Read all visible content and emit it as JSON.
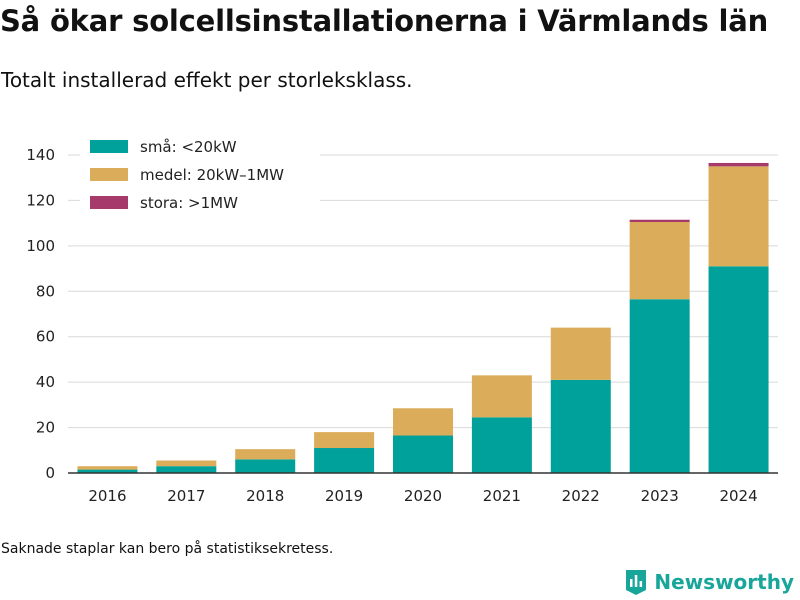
{
  "title": "Så ökar solcellsinstallationerna i Värmlands län",
  "subtitle": "Totalt installerad effekt per storleksklass.",
  "footnote": "Saknade staplar kan bero på statistiksekretess.",
  "brand": {
    "name": "Newsworthy",
    "icon": "newsworthy-logo-icon"
  },
  "colors": {
    "small": "#00a19a",
    "medium": "#dbad5a",
    "large": "#a63b6b",
    "grid": "#d9d9d9",
    "axis": "#333333"
  },
  "chart_data": {
    "type": "bar",
    "stacked": true,
    "categories": [
      "2016",
      "2017",
      "2018",
      "2019",
      "2020",
      "2021",
      "2022",
      "2023",
      "2024"
    ],
    "series": [
      {
        "name": "små: <20kW",
        "color": "#00a19a",
        "values": [
          1.5,
          3,
          6,
          11,
          16.5,
          24.5,
          41,
          76.5,
          91
        ]
      },
      {
        "name": "medel: 20kW–1MW",
        "color": "#dbad5a",
        "values": [
          1.5,
          2.5,
          4.5,
          7,
          12,
          18.5,
          23,
          34,
          44
        ]
      },
      {
        "name": "stora: >1MW",
        "color": "#a63b6b",
        "values": [
          0,
          0,
          0,
          0,
          0,
          0,
          0,
          1,
          1.5
        ]
      }
    ],
    "yticks": [
      0,
      20,
      40,
      60,
      80,
      100,
      120,
      140
    ],
    "ylim": [
      0,
      140
    ],
    "grid": true,
    "legend_position": "top-left"
  }
}
